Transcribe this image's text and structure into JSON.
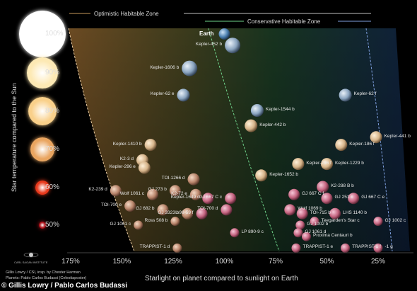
{
  "zones": {
    "optimistic": "Optimistic Habitable Zone",
    "conservative": "Conservative Habitable Zone"
  },
  "axes": {
    "y_title": "Star temperature compared to the Sun",
    "x_title": "Starlight on planet compared to sunlight on Earth",
    "x_ticks": [
      "175%",
      "150%",
      "125%",
      "100%",
      "75%",
      "50%",
      "25%"
    ],
    "y_ticks": [
      "100%",
      "90%",
      "80%",
      "70%",
      "60%",
      "50%"
    ]
  },
  "star_colors": [
    "#ffffff",
    "#fde9b4",
    "#f9d08a",
    "#e9a560",
    "#e8391c",
    "#b0121a"
  ],
  "planets": [
    {
      "name": "Earth",
      "type": "earth",
      "starlight_pct": 100,
      "star_temp_pct": 100
    },
    {
      "name": "Kepler-452 b",
      "type": "blue",
      "starlight_pct": 96,
      "star_temp_pct": 97
    },
    {
      "name": "Kepler-1606 b",
      "type": "blue",
      "starlight_pct": 117,
      "star_temp_pct": 91
    },
    {
      "name": "Kepler-62 e",
      "type": "blue",
      "starlight_pct": 120,
      "star_temp_pct": 84
    },
    {
      "name": "Kepler-62 f",
      "type": "blue",
      "starlight_pct": 41,
      "star_temp_pct": 84
    },
    {
      "name": "Kepler-1544 b",
      "type": "blue",
      "starlight_pct": 84,
      "star_temp_pct": 80
    },
    {
      "name": "Kepler-442 b",
      "type": "tan",
      "starlight_pct": 87,
      "star_temp_pct": 76
    },
    {
      "name": "Kepler-441 b",
      "type": "tan",
      "starlight_pct": 26,
      "star_temp_pct": 73
    },
    {
      "name": "Kepler-1410 b",
      "type": "tan",
      "starlight_pct": 136,
      "star_temp_pct": 71
    },
    {
      "name": "Kepler-186 f",
      "type": "tan",
      "starlight_pct": 43,
      "star_temp_pct": 71
    },
    {
      "name": "K2-3 d",
      "type": "tan",
      "starlight_pct": 140,
      "star_temp_pct": 67
    },
    {
      "name": "Kepler-296 f",
      "type": "tan",
      "starlight_pct": 64,
      "star_temp_pct": 66
    },
    {
      "name": "Kepler-1229 b",
      "type": "tan",
      "starlight_pct": 50,
      "star_temp_pct": 66
    },
    {
      "name": "Kepler-296 e",
      "type": "tan",
      "starlight_pct": 139,
      "star_temp_pct": 65
    },
    {
      "name": "Kepler-1652 b",
      "type": "tan",
      "starlight_pct": 82,
      "star_temp_pct": 63
    },
    {
      "name": "TOI-1266 d",
      "type": "rocky",
      "starlight_pct": 115,
      "star_temp_pct": 62
    },
    {
      "name": "K2-288 B b",
      "type": "pink",
      "starlight_pct": 52,
      "star_temp_pct": 60
    },
    {
      "name": "K2-239 d",
      "type": "rocky",
      "starlight_pct": 153,
      "star_temp_pct": 59
    },
    {
      "name": "Wolf 1061 c",
      "type": "rocky",
      "starlight_pct": 135,
      "star_temp_pct": 58
    },
    {
      "name": "GJ 273 b",
      "type": "rocky",
      "starlight_pct": 124,
      "star_temp_pct": 59
    },
    {
      "name": "K2-72 e",
      "type": "rocky",
      "starlight_pct": 114,
      "star_temp_pct": 58
    },
    {
      "name": "Kepler-1649 c",
      "type": "pink",
      "starlight_pct": 108,
      "star_temp_pct": 57
    },
    {
      "name": "GJ 667 C c",
      "type": "pink",
      "starlight_pct": 97,
      "star_temp_pct": 57
    },
    {
      "name": "GJ 667 C f",
      "type": "pink",
      "starlight_pct": 66,
      "star_temp_pct": 58
    },
    {
      "name": "GJ 251 c",
      "type": "pink",
      "starlight_pct": 50,
      "star_temp_pct": 57
    },
    {
      "name": "GJ 667 C e",
      "type": "pink",
      "starlight_pct": 37,
      "star_temp_pct": 57
    },
    {
      "name": "TOI-700 e",
      "type": "rocky",
      "starlight_pct": 146,
      "star_temp_pct": 55
    },
    {
      "name": "GJ 682 b",
      "type": "rocky",
      "starlight_pct": 130,
      "star_temp_pct": 54
    },
    {
      "name": "Wolf 1069 b",
      "type": "pink",
      "starlight_pct": 68,
      "star_temp_pct": 54
    },
    {
      "name": "TOI-715 b",
      "type": "pink",
      "starlight_pct": 62,
      "star_temp_pct": 53
    },
    {
      "name": "LHS 1140 b",
      "type": "pink",
      "starlight_pct": 46,
      "star_temp_pct": 53
    },
    {
      "name": "GJ 3323 b",
      "type": "rocky",
      "starlight_pct": 118,
      "star_temp_pct": 53
    },
    {
      "name": "L 98-59 f",
      "type": "pink",
      "starlight_pct": 111,
      "star_temp_pct": 53
    },
    {
      "name": "TOI-700 d",
      "type": "pink",
      "starlight_pct": 99,
      "star_temp_pct": 54
    },
    {
      "name": "GJ 1061 c",
      "type": "rocky",
      "starlight_pct": 142,
      "star_temp_pct": 50
    },
    {
      "name": "Ross 508 b",
      "type": "rocky",
      "starlight_pct": 124,
      "star_temp_pct": 51
    },
    {
      "name": "GJ 1002 b",
      "type": "pink",
      "starlight_pct": 63,
      "star_temp_pct": 50
    },
    {
      "name": "Teegarden's Star c",
      "type": "pink",
      "starlight_pct": 56,
      "star_temp_pct": 51
    },
    {
      "name": "GJ 1002 c",
      "type": "pink",
      "starlight_pct": 25,
      "star_temp_pct": 51
    },
    {
      "name": "LP 890-9 c",
      "type": "pink",
      "starlight_pct": 95,
      "star_temp_pct": 48
    },
    {
      "name": "GJ 1061 d",
      "type": "pink",
      "starlight_pct": 64,
      "star_temp_pct": 48
    },
    {
      "name": "Proxima Centauri b",
      "type": "pink",
      "starlight_pct": 60,
      "star_temp_pct": 47
    },
    {
      "name": "TRAPPIST-1 d",
      "type": "rocky",
      "starlight_pct": 123,
      "star_temp_pct": 44
    },
    {
      "name": "TRAPPIST-1 e",
      "type": "pink",
      "starlight_pct": 65,
      "star_temp_pct": 44
    },
    {
      "name": "TRAPPIST-1 f",
      "type": "pink",
      "starlight_pct": 41,
      "star_temp_pct": 44
    },
    {
      "name": "-1 g",
      "type": "pink",
      "starlight_pct": 25,
      "star_temp_pct": 44
    }
  ],
  "credits": {
    "logo": "CARL SAGAN INSTITUTE",
    "line1": "Gillis Lowry / CSI, insp. by Chester Harman",
    "line2": "Planets: Pablo Carlos Budassi (Celestiaposter)",
    "line3": "© Gillis Lowry / Pablo Carlos Budassi"
  }
}
